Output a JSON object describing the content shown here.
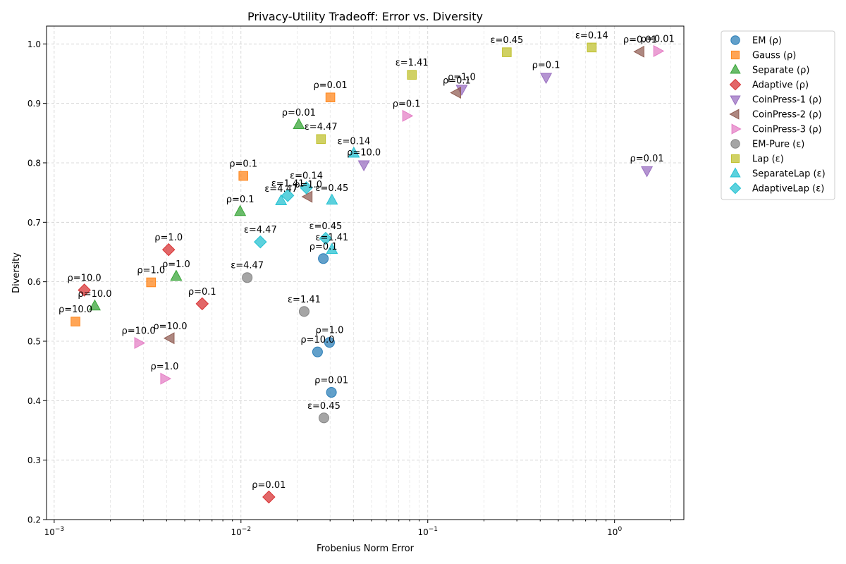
{
  "chart_data": {
    "type": "scatter",
    "title": "Privacy-Utility Tradeoff: Error vs. Diversity",
    "xlabel": "Frobenius Norm Error",
    "ylabel": "Diversity",
    "xscale": "log",
    "xlim": [
      0.00091,
      2.35
    ],
    "ylim": [
      0.2,
      1.03
    ],
    "xticks": [
      {
        "value": 0.001,
        "base": "10",
        "exp": "−3"
      },
      {
        "value": 0.01,
        "base": "10",
        "exp": "−2"
      },
      {
        "value": 0.1,
        "base": "10",
        "exp": "−1"
      },
      {
        "value": 1,
        "base": "10",
        "exp": "0"
      }
    ],
    "yticks": [
      {
        "value": 0.2,
        "label": "0.2"
      },
      {
        "value": 0.3,
        "label": "0.3"
      },
      {
        "value": 0.4,
        "label": "0.4"
      },
      {
        "value": 0.5,
        "label": "0.5"
      },
      {
        "value": 0.6,
        "label": "0.6"
      },
      {
        "value": 0.7,
        "label": "0.7"
      },
      {
        "value": 0.8,
        "label": "0.8"
      },
      {
        "value": 0.9,
        "label": "0.9"
      },
      {
        "value": 1.0,
        "label": "1.0"
      }
    ],
    "grid": true,
    "legend_position": "outside-right",
    "series": [
      {
        "name": "EM (ρ)",
        "color": "#1f77b4",
        "marker": "circle",
        "points": [
          {
            "x": 0.0305,
            "y": 0.414,
            "label": "ρ=0.01"
          },
          {
            "x": 0.0276,
            "y": 0.639,
            "label": "ρ=0.1"
          },
          {
            "x": 0.0298,
            "y": 0.498,
            "label": "ρ=1.0"
          },
          {
            "x": 0.0257,
            "y": 0.482,
            "label": "ρ=10.0"
          }
        ]
      },
      {
        "name": "Gauss (ρ)",
        "color": "#ff7f0e",
        "marker": "square",
        "points": [
          {
            "x": 0.0301,
            "y": 0.91,
            "label": "ρ=0.01"
          },
          {
            "x": 0.0103,
            "y": 0.778,
            "label": "ρ=0.1"
          },
          {
            "x": 0.0033,
            "y": 0.599,
            "label": "ρ=1.0"
          },
          {
            "x": 0.0013,
            "y": 0.533,
            "label": "ρ=10.0"
          }
        ]
      },
      {
        "name": "Separate (ρ)",
        "color": "#2ca02c",
        "marker": "triangle-up",
        "points": [
          {
            "x": 0.0204,
            "y": 0.864,
            "label": "ρ=0.01"
          },
          {
            "x": 0.0099,
            "y": 0.718,
            "label": "ρ=0.1"
          },
          {
            "x": 0.0045,
            "y": 0.609,
            "label": "ρ=1.0"
          },
          {
            "x": 0.00165,
            "y": 0.559,
            "label": "ρ=10.0"
          }
        ]
      },
      {
        "name": "Adaptive (ρ)",
        "color": "#d62728",
        "marker": "diamond",
        "points": [
          {
            "x": 0.0141,
            "y": 0.238,
            "label": "ρ=0.01"
          },
          {
            "x": 0.0062,
            "y": 0.563,
            "label": "ρ=0.1"
          },
          {
            "x": 0.0041,
            "y": 0.654,
            "label": "ρ=1.0"
          },
          {
            "x": 0.00145,
            "y": 0.586,
            "label": "ρ=10.0"
          }
        ]
      },
      {
        "name": "CoinPress-1 (ρ)",
        "color": "#9467bd",
        "marker": "triangle-down",
        "points": [
          {
            "x": 1.49,
            "y": 0.787,
            "label": "ρ=0.01"
          },
          {
            "x": 0.43,
            "y": 0.944,
            "label": "ρ=0.1"
          },
          {
            "x": 0.152,
            "y": 0.924,
            "label": "ρ=1.0"
          },
          {
            "x": 0.0455,
            "y": 0.797,
            "label": "ρ=10.0"
          }
        ]
      },
      {
        "name": "CoinPress-2 (ρ)",
        "color": "#8c564b",
        "marker": "triangle-left",
        "points": [
          {
            "x": 1.37,
            "y": 0.987,
            "label": "ρ=0.01"
          },
          {
            "x": 0.143,
            "y": 0.918,
            "label": "ρ=0.1"
          },
          {
            "x": 0.0229,
            "y": 0.743,
            "label": "ρ=1.0"
          },
          {
            "x": 0.00418,
            "y": 0.505,
            "label": "ρ=10.0"
          }
        ]
      },
      {
        "name": "CoinPress-3 (ρ)",
        "color": "#e377c2",
        "marker": "triangle-right",
        "points": [
          {
            "x": 1.7,
            "y": 0.988,
            "label": "ρ=0.01"
          },
          {
            "x": 0.077,
            "y": 0.879,
            "label": "ρ=0.1"
          },
          {
            "x": 0.0039,
            "y": 0.437,
            "label": "ρ=1.0"
          },
          {
            "x": 0.00283,
            "y": 0.497,
            "label": "ρ=10.0"
          }
        ]
      },
      {
        "name": "EM-Pure (ε)",
        "color": "#7f7f7f",
        "marker": "circle",
        "points": [
          {
            "x": 0.0278,
            "y": 0.371,
            "label": "ε=0.45"
          },
          {
            "x": 0.0218,
            "y": 0.55,
            "label": "ε=1.41"
          },
          {
            "x": 0.0108,
            "y": 0.607,
            "label": "ε=4.47"
          }
        ]
      },
      {
        "name": "Lap (ε)",
        "color": "#bcbd22",
        "marker": "square",
        "points": [
          {
            "x": 0.755,
            "y": 0.994,
            "label": "ε=0.14"
          },
          {
            "x": 0.265,
            "y": 0.986,
            "label": "ε=0.45"
          },
          {
            "x": 0.0822,
            "y": 0.948,
            "label": "ε=1.41"
          },
          {
            "x": 0.0268,
            "y": 0.84,
            "label": "ε=4.47"
          }
        ]
      },
      {
        "name": "SeparateLap (ε)",
        "color": "#17becf",
        "marker": "triangle-up",
        "points": [
          {
            "x": 0.0402,
            "y": 0.816,
            "label": "ε=0.14"
          },
          {
            "x": 0.0307,
            "y": 0.737,
            "label": "ε=0.45"
          },
          {
            "x": 0.0307,
            "y": 0.654,
            "label": "ε=1.41"
          },
          {
            "x": 0.0164,
            "y": 0.736,
            "label": "ε=4.47"
          }
        ]
      },
      {
        "name": "AdaptiveLap (ε)",
        "color": "#17becf",
        "marker": "diamond",
        "points": [
          {
            "x": 0.0224,
            "y": 0.758,
            "label": "ε=0.14"
          },
          {
            "x": 0.0284,
            "y": 0.673,
            "label": "ε=0.45"
          },
          {
            "x": 0.0178,
            "y": 0.745,
            "label": "ε=1.41"
          },
          {
            "x": 0.0127,
            "y": 0.667,
            "label": "ε=4.47"
          }
        ]
      }
    ]
  }
}
